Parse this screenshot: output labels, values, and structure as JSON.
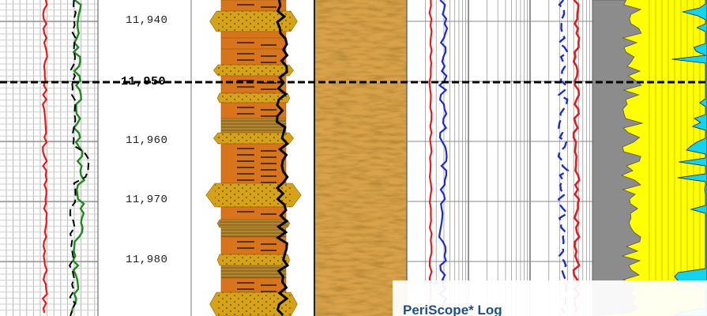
{
  "depth_track": {
    "labels": [
      {
        "text": "11,940",
        "major": false
      },
      {
        "text": "11,950",
        "major": true
      },
      {
        "text": "11,960",
        "major": false
      },
      {
        "text": "11,970",
        "major": false
      },
      {
        "text": "11,980",
        "major": false
      }
    ]
  },
  "caption": {
    "title": "PeriScope* Log"
  },
  "colors": {
    "red_curve": "#e41a1c",
    "green_curve": "#1a8a1a",
    "blue_curve": "#1a2bd6",
    "sand": "#d7a316",
    "shale": "#d8751c",
    "gray_fill": "#8c8c8c",
    "yellow_fill": "#ffff00",
    "cyan_fill": "#14d3ef",
    "caption_blue": "#1f4f86"
  }
}
